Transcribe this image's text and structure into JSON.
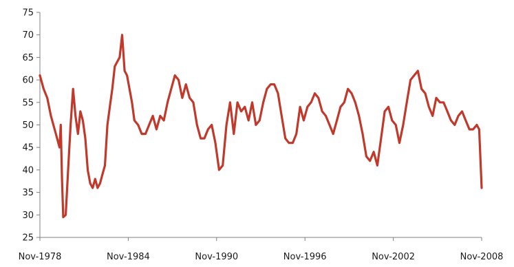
{
  "chart_data": {
    "type": "line",
    "title": "",
    "xlabel": "",
    "ylabel": "",
    "ylim": [
      25,
      75
    ],
    "yticks": [
      25,
      30,
      35,
      40,
      45,
      50,
      55,
      60,
      65,
      70,
      75
    ],
    "xlim": [
      "1978-11",
      "2008-11"
    ],
    "xticks": [
      "Nov-1978",
      "Nov-1984",
      "Nov-1990",
      "Nov-1996",
      "Nov-2002",
      "Nov-2008"
    ],
    "grid": false,
    "legend": "none",
    "colors": {
      "line": "#c0392b",
      "axis": "#7f7f7f",
      "text": "#1a1a1a"
    },
    "series": [
      {
        "points": [
          [
            "1978-11",
            61
          ],
          [
            "1979-02",
            58
          ],
          [
            "1979-05",
            56
          ],
          [
            "1979-08",
            52
          ],
          [
            "1979-11",
            49
          ],
          [
            "1980-01",
            47
          ],
          [
            "1980-03",
            45
          ],
          [
            "1980-04",
            50
          ],
          [
            "1980-05",
            38
          ],
          [
            "1980-06",
            29.5
          ],
          [
            "1980-08",
            30
          ],
          [
            "1980-10",
            40
          ],
          [
            "1980-12",
            50
          ],
          [
            "1981-02",
            58
          ],
          [
            "1981-04",
            52
          ],
          [
            "1981-06",
            48
          ],
          [
            "1981-08",
            53
          ],
          [
            "1981-10",
            51
          ],
          [
            "1981-12",
            47
          ],
          [
            "1982-02",
            40
          ],
          [
            "1982-04",
            37
          ],
          [
            "1982-06",
            36
          ],
          [
            "1982-08",
            38
          ],
          [
            "1982-10",
            36
          ],
          [
            "1982-12",
            37
          ],
          [
            "1983-02",
            39
          ],
          [
            "1983-04",
            41
          ],
          [
            "1983-06",
            50
          ],
          [
            "1983-08",
            54
          ],
          [
            "1983-10",
            58
          ],
          [
            "1983-12",
            63
          ],
          [
            "1984-02",
            64
          ],
          [
            "1984-04",
            65
          ],
          [
            "1984-06",
            70
          ],
          [
            "1984-08",
            62
          ],
          [
            "1984-10",
            61
          ],
          [
            "1984-12",
            58
          ],
          [
            "1985-02",
            55
          ],
          [
            "1985-04",
            51
          ],
          [
            "1985-07",
            50
          ],
          [
            "1985-10",
            48
          ],
          [
            "1986-01",
            48
          ],
          [
            "1986-04",
            50
          ],
          [
            "1986-07",
            52
          ],
          [
            "1986-10",
            49
          ],
          [
            "1987-01",
            52
          ],
          [
            "1987-04",
            51
          ],
          [
            "1987-07",
            55
          ],
          [
            "1987-10",
            58
          ],
          [
            "1988-01",
            61
          ],
          [
            "1988-04",
            60
          ],
          [
            "1988-07",
            56
          ],
          [
            "1988-10",
            59
          ],
          [
            "1989-01",
            56
          ],
          [
            "1989-04",
            55
          ],
          [
            "1989-07",
            50
          ],
          [
            "1989-10",
            47
          ],
          [
            "1990-01",
            47
          ],
          [
            "1990-04",
            49
          ],
          [
            "1990-07",
            50
          ],
          [
            "1990-10",
            46
          ],
          [
            "1991-01",
            40
          ],
          [
            "1991-04",
            41
          ],
          [
            "1991-07",
            50
          ],
          [
            "1991-10",
            55
          ],
          [
            "1992-01",
            48
          ],
          [
            "1992-04",
            55
          ],
          [
            "1992-07",
            53
          ],
          [
            "1992-10",
            54
          ],
          [
            "1993-01",
            51
          ],
          [
            "1993-04",
            55
          ],
          [
            "1993-07",
            50
          ],
          [
            "1993-10",
            51
          ],
          [
            "1994-01",
            55
          ],
          [
            "1994-04",
            58
          ],
          [
            "1994-07",
            59
          ],
          [
            "1994-10",
            59
          ],
          [
            "1995-01",
            57
          ],
          [
            "1995-04",
            52
          ],
          [
            "1995-07",
            47
          ],
          [
            "1995-10",
            46
          ],
          [
            "1996-01",
            46
          ],
          [
            "1996-04",
            48
          ],
          [
            "1996-07",
            54
          ],
          [
            "1996-10",
            51
          ],
          [
            "1997-01",
            54
          ],
          [
            "1997-04",
            55
          ],
          [
            "1997-07",
            57
          ],
          [
            "1997-10",
            56
          ],
          [
            "1998-01",
            53
          ],
          [
            "1998-04",
            52
          ],
          [
            "1998-07",
            50
          ],
          [
            "1998-10",
            48
          ],
          [
            "1999-01",
            51
          ],
          [
            "1999-04",
            54
          ],
          [
            "1999-07",
            55
          ],
          [
            "1999-10",
            58
          ],
          [
            "2000-01",
            57
          ],
          [
            "2000-04",
            55
          ],
          [
            "2000-07",
            52
          ],
          [
            "2000-10",
            48
          ],
          [
            "2001-01",
            43
          ],
          [
            "2001-04",
            42
          ],
          [
            "2001-07",
            44
          ],
          [
            "2001-10",
            41
          ],
          [
            "2002-01",
            47
          ],
          [
            "2002-04",
            53
          ],
          [
            "2002-07",
            54
          ],
          [
            "2002-10",
            51
          ],
          [
            "2003-01",
            50
          ],
          [
            "2003-04",
            46
          ],
          [
            "2003-07",
            50
          ],
          [
            "2003-10",
            55
          ],
          [
            "2004-01",
            60
          ],
          [
            "2004-04",
            61
          ],
          [
            "2004-07",
            62
          ],
          [
            "2004-10",
            58
          ],
          [
            "2005-01",
            57
          ],
          [
            "2005-04",
            54
          ],
          [
            "2005-07",
            52
          ],
          [
            "2005-10",
            56
          ],
          [
            "2006-01",
            55
          ],
          [
            "2006-04",
            55
          ],
          [
            "2006-07",
            53
          ],
          [
            "2006-10",
            51
          ],
          [
            "2007-01",
            50
          ],
          [
            "2007-04",
            52
          ],
          [
            "2007-07",
            53
          ],
          [
            "2007-10",
            51
          ],
          [
            "2008-01",
            49
          ],
          [
            "2008-04",
            49
          ],
          [
            "2008-07",
            50
          ],
          [
            "2008-09",
            49
          ],
          [
            "2008-11",
            36
          ]
        ]
      }
    ]
  }
}
